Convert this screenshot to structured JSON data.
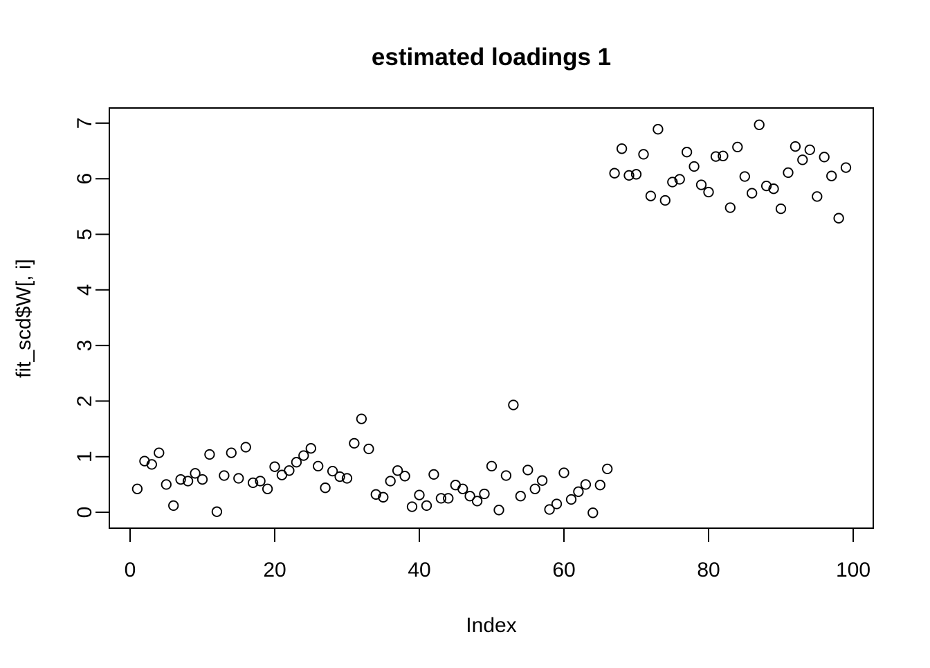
{
  "chart_data": {
    "type": "scatter",
    "title": "estimated loadings 1",
    "xlabel": "Index",
    "ylabel": "fit_scd$W[, i]",
    "marker": "open-circle",
    "marker_color": "#000000",
    "background": "#ffffff",
    "grid": false,
    "legend": "none",
    "xlim": [
      0,
      100
    ],
    "ylim": [
      0,
      7
    ],
    "xticks": [
      0,
      20,
      40,
      60,
      80,
      100
    ],
    "yticks": [
      0,
      1,
      2,
      3,
      4,
      5,
      6,
      7
    ],
    "x": [
      1,
      2,
      3,
      4,
      5,
      6,
      7,
      8,
      9,
      10,
      11,
      12,
      13,
      14,
      15,
      16,
      17,
      18,
      19,
      20,
      21,
      22,
      23,
      24,
      25,
      26,
      27,
      28,
      29,
      30,
      31,
      32,
      33,
      34,
      35,
      36,
      37,
      38,
      39,
      40,
      41,
      42,
      43,
      44,
      45,
      46,
      47,
      48,
      49,
      50,
      51,
      52,
      53,
      54,
      55,
      56,
      57,
      58,
      59,
      60,
      61,
      62,
      63,
      64,
      65,
      66,
      67,
      68,
      69,
      70,
      71,
      72,
      73,
      74,
      75,
      76,
      77,
      78,
      79,
      80,
      81,
      82,
      83,
      84,
      85,
      86,
      87,
      88,
      89,
      90,
      91,
      92,
      93,
      94,
      95,
      96,
      97,
      98,
      99
    ],
    "y": [
      0.42,
      0.92,
      0.86,
      1.07,
      0.5,
      0.12,
      0.59,
      0.56,
      0.7,
      0.59,
      1.04,
      0.01,
      0.66,
      1.07,
      0.61,
      1.17,
      0.53,
      0.56,
      0.42,
      0.82,
      0.67,
      0.75,
      0.9,
      1.02,
      1.15,
      0.83,
      0.44,
      0.74,
      0.64,
      0.61,
      1.24,
      1.68,
      1.14,
      0.32,
      0.27,
      0.56,
      0.75,
      0.65,
      0.1,
      0.31,
      0.12,
      0.68,
      0.25,
      0.25,
      0.49,
      0.42,
      0.29,
      0.2,
      0.33,
      0.83,
      0.04,
      0.66,
      1.93,
      0.29,
      0.76,
      0.42,
      0.57,
      0.05,
      0.15,
      0.71,
      0.23,
      0.37,
      0.5,
      -0.01,
      0.49,
      0.78,
      6.1,
      6.54,
      6.06,
      6.08,
      6.44,
      5.69,
      6.89,
      5.61,
      5.94,
      5.99,
      6.48,
      6.22,
      5.89,
      5.76,
      6.4,
      6.41,
      5.48,
      6.57,
      6.04,
      5.74,
      6.97,
      5.87,
      5.82,
      5.46,
      6.11,
      6.58,
      6.34,
      6.52,
      5.68,
      6.39,
      6.05,
      5.29,
      6.2
    ]
  }
}
